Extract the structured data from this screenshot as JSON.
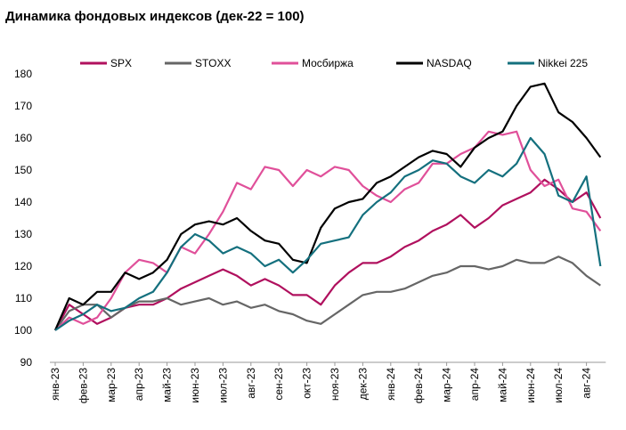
{
  "chart_data": {
    "type": "line",
    "title": "Динамика фондовых индексов (дек-22 = 100)",
    "categories": [
      "янв-23",
      null,
      "фев-23",
      null,
      "мар-23",
      null,
      "апр-23",
      null,
      "май-23",
      null,
      "июн-23",
      null,
      "июл-23",
      null,
      "авг-23",
      null,
      "сен-23",
      null,
      "окт-23",
      null,
      "ноя-23",
      null,
      "дек-23",
      null,
      "янв-24",
      null,
      "фев-24",
      null,
      "мар-24",
      null,
      "апр-24",
      null,
      "май-24",
      null,
      "июн-24",
      null,
      "июл-24",
      null,
      "авг-24",
      null
    ],
    "series": [
      {
        "name": "SPX",
        "color": "#b0105e",
        "values": [
          100,
          108,
          105,
          102,
          104,
          107,
          108,
          108,
          110,
          113,
          115,
          117,
          119,
          117,
          114,
          116,
          114,
          111,
          111,
          108,
          114,
          118,
          121,
          121,
          123,
          126,
          128,
          131,
          133,
          136,
          132,
          135,
          139,
          141,
          143,
          147,
          144,
          140,
          143,
          135
        ]
      },
      {
        "name": "STOXX",
        "color": "#666666",
        "values": [
          100,
          106,
          108,
          108,
          104,
          107,
          109,
          109,
          110,
          108,
          109,
          110,
          108,
          109,
          107,
          108,
          106,
          105,
          103,
          102,
          105,
          108,
          111,
          112,
          112,
          113,
          115,
          117,
          118,
          120,
          120,
          119,
          120,
          122,
          121,
          121,
          123,
          121,
          117,
          114
        ]
      },
      {
        "name": "Мосбиржа",
        "color": "#e0509a",
        "values": [
          100,
          104,
          102,
          104,
          110,
          118,
          122,
          121,
          118,
          126,
          124,
          130,
          137,
          146,
          144,
          151,
          150,
          145,
          150,
          148,
          151,
          150,
          145,
          142,
          140,
          144,
          146,
          152,
          152,
          155,
          157,
          162,
          161,
          162,
          150,
          145,
          147,
          138,
          137,
          131
        ]
      },
      {
        "name": "NASDAQ",
        "color": "#000000",
        "values": [
          100,
          110,
          108,
          112,
          112,
          118,
          116,
          118,
          122,
          130,
          133,
          134,
          133,
          135,
          131,
          128,
          127,
          122,
          121,
          132,
          138,
          140,
          141,
          146,
          148,
          151,
          154,
          156,
          155,
          151,
          157,
          160,
          162,
          170,
          176,
          177,
          168,
          165,
          160,
          154
        ]
      },
      {
        "name": "Nikkei  225",
        "color": "#14707e",
        "values": [
          100,
          103,
          105,
          108,
          106,
          107,
          110,
          112,
          118,
          126,
          130,
          128,
          124,
          126,
          124,
          120,
          122,
          118,
          122,
          127,
          128,
          129,
          136,
          140,
          143,
          148,
          150,
          153,
          152,
          148,
          146,
          150,
          148,
          152,
          160,
          155,
          142,
          140,
          148,
          120
        ]
      }
    ],
    "ylim": [
      90,
      180
    ],
    "yticks": [
      90,
      100,
      110,
      120,
      130,
      140,
      150,
      160,
      170,
      180
    ]
  }
}
